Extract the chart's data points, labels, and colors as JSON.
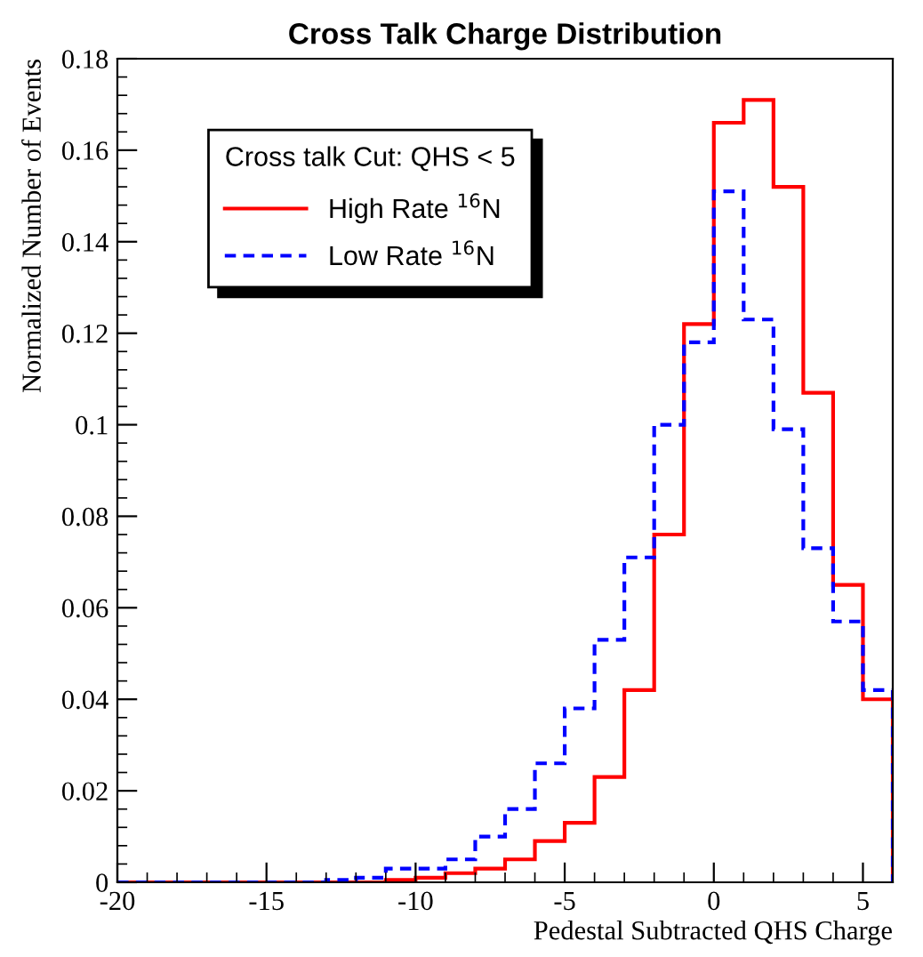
{
  "chart_data": {
    "type": "histogram",
    "title": "Cross Talk Charge Distribution",
    "xlabel": "Pedestal Subtracted QHS Charge",
    "ylabel": "Normalized Number of Events",
    "legend_title": "Cross talk Cut: QHS < 5",
    "bins": [
      -20,
      -19,
      -18,
      -17,
      -16,
      -15,
      -14,
      -13,
      -12,
      -11,
      -10,
      -9,
      -8,
      -7,
      -6,
      -5,
      -4,
      -3,
      -2,
      -1,
      0,
      1,
      2,
      3,
      4,
      5,
      6
    ],
    "series": [
      {
        "name": "High Rate $^{16}$N",
        "color": "#ff0000",
        "line_style": "solid",
        "values": [
          0,
          0,
          0,
          0,
          0,
          0,
          0,
          0,
          0,
          0.0005,
          0.001,
          0.002,
          0.003,
          0.005,
          0.009,
          0.013,
          0.023,
          0.042,
          0.076,
          0.122,
          0.166,
          0.171,
          0.152,
          0.107,
          0.065,
          0.04
        ]
      },
      {
        "name": "Low Rate $^{16}$N",
        "color": "#0000ff",
        "line_style": "dashed",
        "values": [
          0,
          0,
          0,
          0,
          0,
          0,
          0,
          0.0005,
          0.001,
          0.003,
          0.003,
          0.005,
          0.01,
          0.016,
          0.026,
          0.038,
          0.053,
          0.071,
          0.1,
          0.118,
          0.151,
          0.123,
          0.099,
          0.073,
          0.057,
          0.042
        ]
      }
    ],
    "xlim": [
      -20,
      6
    ],
    "xticks": [
      -20,
      -15,
      -10,
      -5,
      0,
      5
    ],
    "ylim": [
      0,
      0.18
    ],
    "yticks": [
      0,
      0.02,
      0.04,
      0.06,
      0.08,
      0.1,
      0.12,
      0.14,
      0.16,
      0.18
    ],
    "grid": false,
    "legend": "top left"
  }
}
